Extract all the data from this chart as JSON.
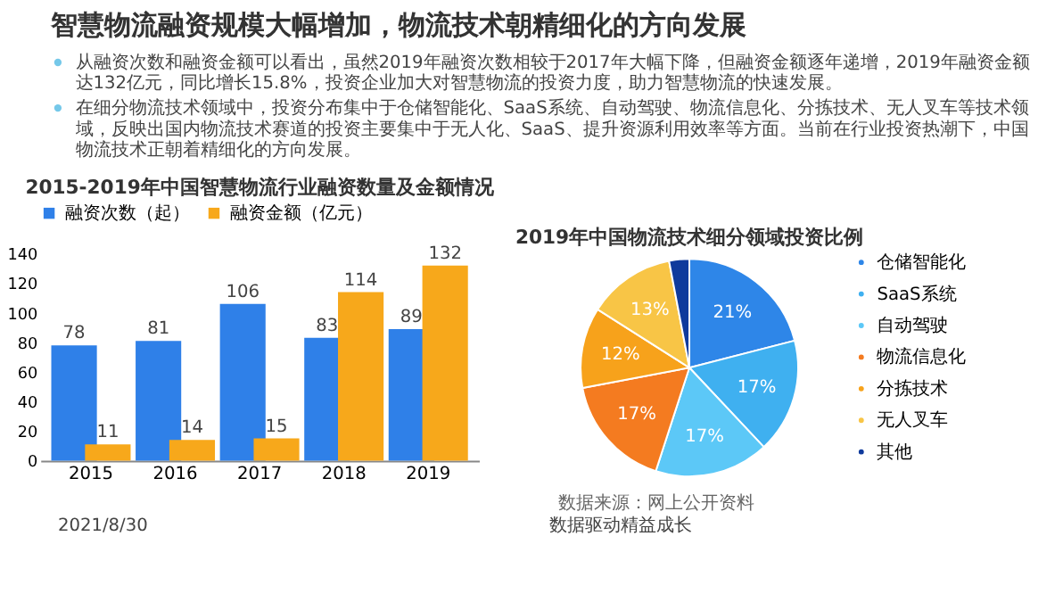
{
  "chart_data": [
    {
      "type": "other",
      "title": "智慧物流融资规模大幅增加，物流技术朝精细化的方向发展",
      "annotations": [
        "从融资次数和融资金额可以看出，虽然2019年融资次数相较于2017年大幅下降，但融资金额逐年递增，2019年融资金额达132亿元，同比增长15.8%，投资企业加大对智慧物流的投资力度，助力智慧物流的快速发展。",
        "在细分物流技术领域中，投资分布集中于仓储智能化、SaaS系统、自动驾驶、物流信息化、分拣技术、无人叉车等技术领域，反映出国内物流技术赛道的投资主要集中于无人化、SaaS、提升资源利用效率等方面。当前在行业投资热潮下，中国物流技术正朝着精细化的方向发展。"
      ]
    },
    {
      "type": "bar",
      "title": "2015-2019年中国智慧物流行业融资数量及金额情况",
      "categories": [
        "2015",
        "2016",
        "2017",
        "2018",
        "2019"
      ],
      "series": [
        {
          "name": "融资次数（起）",
          "color": "#2f80e8",
          "values": [
            78,
            81,
            106,
            83,
            89
          ]
        },
        {
          "name": "融资金额（亿元）",
          "color": "#f7a81b",
          "values": [
            11,
            14,
            15,
            114,
            132
          ]
        }
      ],
      "ylim": [
        0,
        140
      ],
      "yticks": [
        0,
        20,
        40,
        60,
        80,
        100,
        120,
        140
      ],
      "grid": false,
      "legend": "top",
      "data_labels": true
    },
    {
      "type": "pie",
      "title": "2019年中国物流技术细分领域投资比例",
      "categories": [
        "仓储智能化",
        "SaaS系统",
        "自动驾驶",
        "物流信息化",
        "分拣技术",
        "无人叉车",
        "其他"
      ],
      "values": [
        21,
        17,
        17,
        17,
        12,
        13,
        3
      ],
      "value_labels": [
        "21%",
        "17%",
        "17%",
        "17%",
        "12%",
        "13%",
        null
      ],
      "colors": [
        "#2e86e8",
        "#3fb0f0",
        "#5cc8f7",
        "#f47b20",
        "#f7a21b",
        "#f8c546",
        "#0f3a9c"
      ],
      "legend": "right",
      "annotations": [
        "数据来源：网上公开资料"
      ]
    },
    {
      "type": "other",
      "annotations": [
        "2021/8/30",
        "数据驱动精益成长"
      ]
    }
  ]
}
